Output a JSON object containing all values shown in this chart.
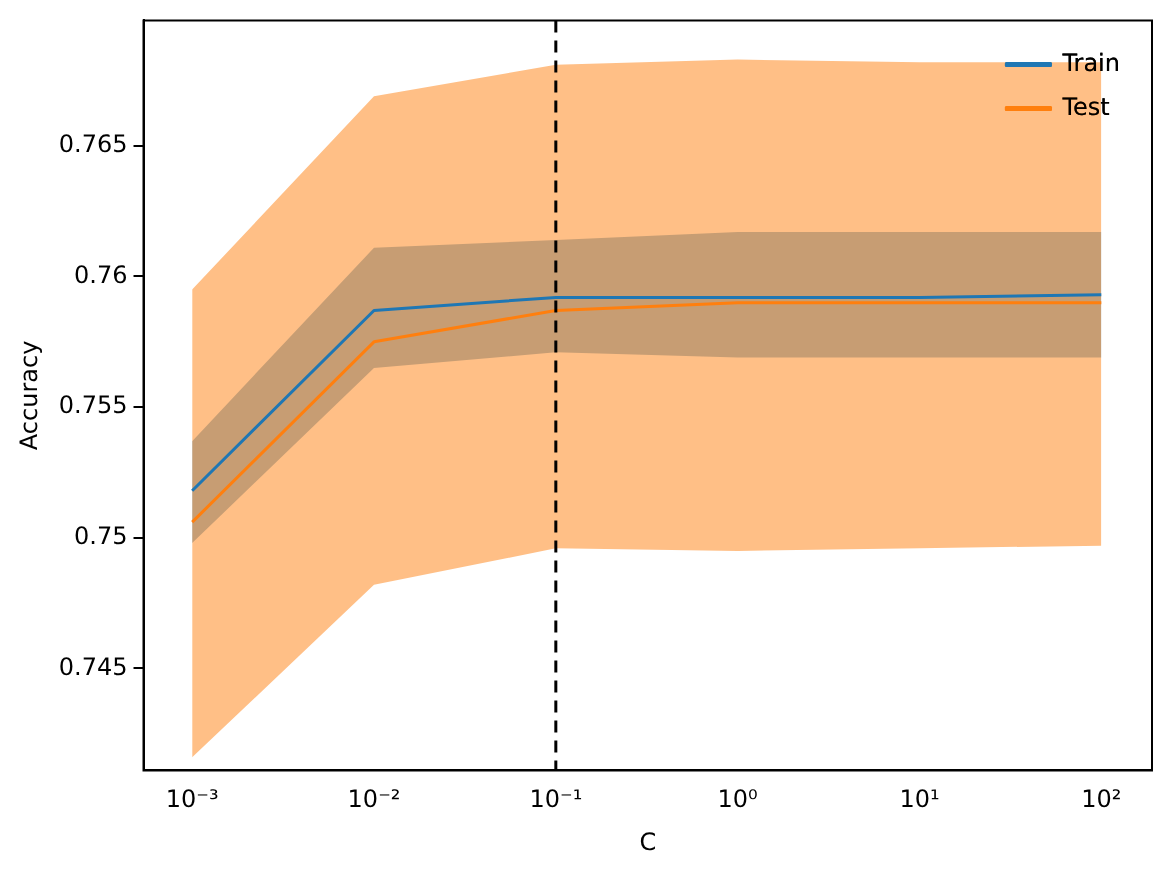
{
  "chart_data": {
    "type": "line",
    "xlabel": "C",
    "ylabel": "Accuracy",
    "x": [
      0.001,
      0.01,
      0.1,
      1,
      10,
      100
    ],
    "series": [
      {
        "name": "Train",
        "color": "#1f77b4",
        "values": [
          0.7518,
          0.7587,
          0.7592,
          0.7592,
          0.7592,
          0.7593
        ],
        "lower": [
          0.7498,
          0.7565,
          0.7571,
          0.7569,
          0.7569,
          0.7569
        ],
        "upper": [
          0.7537,
          0.7611,
          0.7614,
          0.7617,
          0.7617,
          0.7617
        ]
      },
      {
        "name": "Test",
        "color": "#ff7f0e",
        "values": [
          0.7506,
          0.7575,
          0.7587,
          0.759,
          0.759,
          0.759
        ],
        "lower": [
          0.7416,
          0.7482,
          0.7496,
          0.7495,
          0.7496,
          0.7497
        ],
        "upper": [
          0.7595,
          0.7669,
          0.7681,
          0.7683,
          0.7682,
          0.7682
        ]
      }
    ],
    "log": "x",
    "xlim": [
      0.00054,
      190
    ],
    "xticks": [
      {
        "value": 0.001,
        "label": "10⁻³"
      },
      {
        "value": 0.01,
        "label": "10⁻²"
      },
      {
        "value": 0.1,
        "label": "10⁻¹"
      },
      {
        "value": 1,
        "label": "10⁰"
      },
      {
        "value": 10,
        "label": "10¹"
      },
      {
        "value": 100,
        "label": "10²"
      }
    ],
    "ylim": [
      0.7411,
      0.7698
    ],
    "yticks": [
      0.745,
      0.75,
      0.755,
      0.76,
      0.765
    ],
    "ref_lines": [
      {
        "axis": "x",
        "value": 0.1,
        "color": "#000000",
        "line_style": "dashed"
      }
    ],
    "grid": false,
    "legend": "top right",
    "marker": "none",
    "line_style": "solid"
  }
}
